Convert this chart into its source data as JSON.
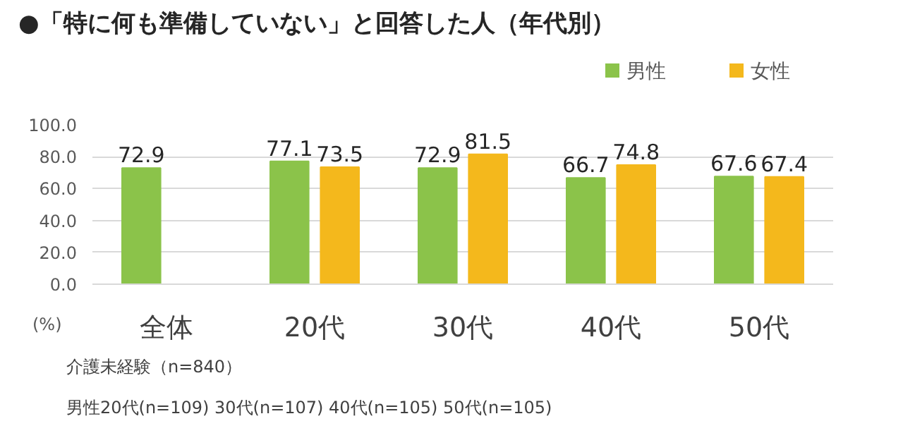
{
  "chart_data": {
    "type": "bar",
    "title": "●「特に何も準備していない」と回答した人（年代別）",
    "categories": [
      "全体",
      "20代",
      "30代",
      "40代",
      "50代"
    ],
    "series": [
      {
        "name": "男性",
        "color": "#8bc34a",
        "values": [
          72.9,
          77.1,
          72.9,
          66.7,
          67.6
        ]
      },
      {
        "name": "女性",
        "color": "#f4b81c",
        "values": [
          null,
          73.5,
          81.5,
          74.8,
          67.4
        ]
      }
    ],
    "ylabel": "(%)",
    "ylim": [
      0,
      100
    ],
    "yticks": [
      {
        "value": 0,
        "label": "0.0"
      },
      {
        "value": 20,
        "label": "20.0"
      },
      {
        "value": 40,
        "label": "40.0"
      },
      {
        "value": 60,
        "label": "60.0"
      },
      {
        "value": 80,
        "label": "80.0"
      },
      {
        "value": 100,
        "label": "100.0"
      }
    ],
    "grid": "y",
    "legend": "top right",
    "data_labels": true,
    "annotations": [
      "介護未経験（n=840）",
      "男性20代(n=109)  30代(n=107)  40代(n=105)  50代(n=105)"
    ]
  }
}
